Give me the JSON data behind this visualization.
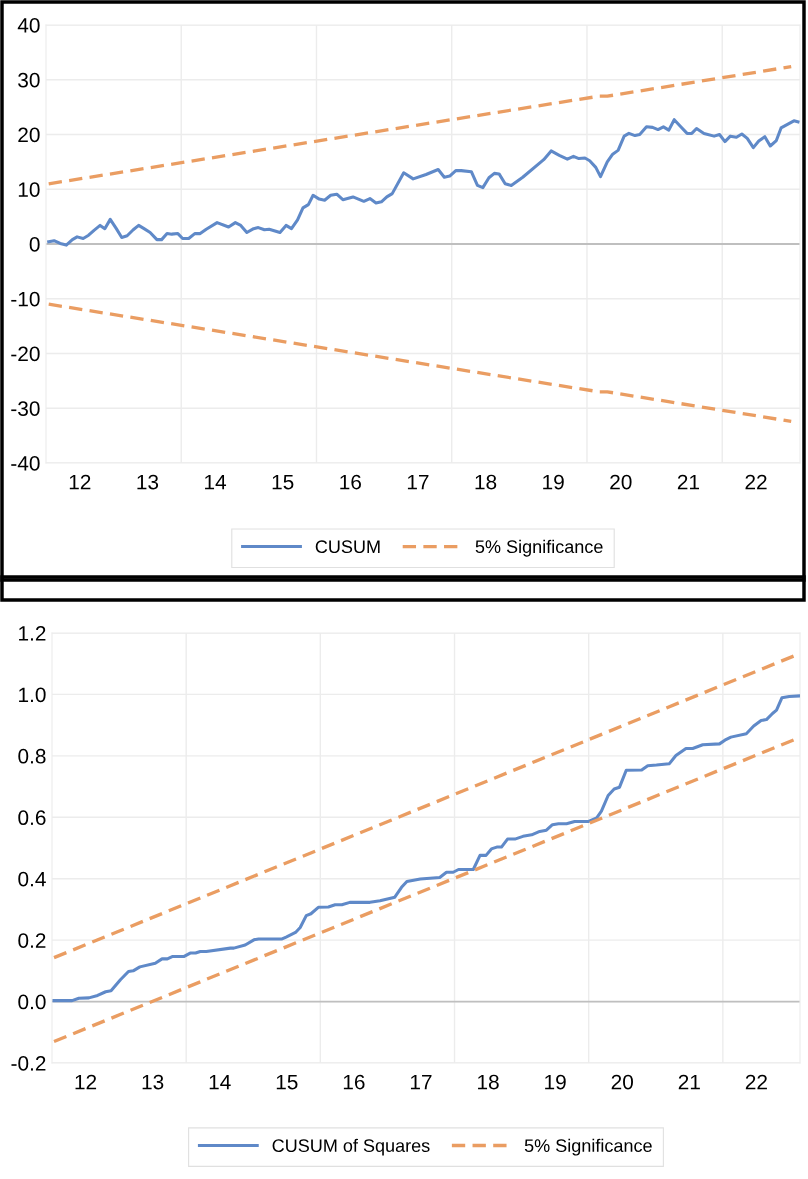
{
  "chart_data": [
    {
      "type": "line",
      "xlim": [
        12,
        23.15
      ],
      "ylim": [
        -40,
        40
      ],
      "yticks": [
        -40,
        -30,
        -20,
        -10,
        0,
        10,
        20,
        30,
        40
      ],
      "xticks": [
        {
          "value": 12.5,
          "label": "12"
        },
        {
          "value": 13.5,
          "label": "13"
        },
        {
          "value": 14.5,
          "label": "14"
        },
        {
          "value": 15.5,
          "label": "15"
        },
        {
          "value": 16.5,
          "label": "16"
        },
        {
          "value": 17.5,
          "label": "17"
        },
        {
          "value": 18.5,
          "label": "18"
        },
        {
          "value": 19.5,
          "label": "19"
        },
        {
          "value": 20.5,
          "label": "20"
        },
        {
          "value": 21.5,
          "label": "21"
        },
        {
          "value": 22.5,
          "label": "22"
        },
        {
          "value": 14,
          "label": null
        },
        {
          "value": 16,
          "label": null
        },
        {
          "value": 18,
          "label": null
        },
        {
          "value": 20,
          "label": null
        },
        {
          "value": 22,
          "label": null
        }
      ],
      "grid": true,
      "legend": "bottom",
      "ref_lines": [
        {
          "axis": "y",
          "value": 0,
          "color": "#bfbfbf"
        }
      ],
      "series": [
        {
          "name": "CUSUM",
          "color": "#5f89c8",
          "line_style": "solid",
          "x": [
            12.04,
            12.12,
            12.21,
            12.3,
            12.39,
            12.46,
            12.55,
            12.63,
            12.71,
            12.8,
            12.87,
            12.95,
            13.04,
            13.12,
            13.2,
            13.29,
            13.37,
            13.45,
            13.54,
            13.64,
            13.71,
            13.79,
            13.86,
            13.95,
            14.02,
            14.11,
            14.2,
            14.28,
            14.37,
            14.53,
            14.7,
            14.8,
            14.88,
            14.97,
            15.07,
            15.14,
            15.23,
            15.3,
            15.46,
            15.55,
            15.63,
            15.72,
            15.8,
            15.88,
            15.95,
            16.04,
            16.12,
            16.21,
            16.3,
            16.39,
            16.54,
            16.7,
            16.79,
            16.88,
            16.96,
            17.04,
            17.12,
            17.29,
            17.43,
            17.62,
            17.8,
            17.89,
            17.97,
            18.06,
            18.14,
            18.29,
            18.38,
            18.46,
            18.55,
            18.63,
            18.7,
            18.79,
            18.88,
            19.05,
            19.36,
            19.47,
            19.59,
            19.71,
            19.8,
            19.88,
            19.97,
            20.04,
            20.13,
            20.2,
            20.3,
            20.38,
            20.46,
            20.55,
            20.62,
            20.71,
            20.78,
            20.88,
            20.97,
            21.05,
            21.13,
            21.21,
            21.29,
            21.38,
            21.48,
            21.55,
            21.62,
            21.73,
            21.88,
            21.96,
            22.04,
            22.12,
            22.21,
            22.29,
            22.37,
            22.46,
            22.54,
            22.63,
            22.71,
            22.8,
            22.87,
            23.06,
            23.12
          ],
          "values": [
            0.4,
            0.6,
            0.1,
            -0.2,
            0.8,
            1.3,
            1.0,
            1.6,
            2.5,
            3.4,
            2.8,
            4.5,
            2.8,
            1.2,
            1.5,
            2.6,
            3.4,
            2.8,
            2.1,
            0.8,
            0.8,
            1.9,
            1.8,
            1.9,
            1.0,
            1.0,
            1.9,
            1.9,
            2.7,
            3.9,
            3.1,
            3.9,
            3.4,
            2.1,
            2.8,
            3.0,
            2.6,
            2.7,
            2.1,
            3.4,
            2.8,
            4.4,
            6.6,
            7.2,
            8.9,
            8.2,
            8.0,
            8.9,
            9.1,
            8.1,
            8.6,
            7.8,
            8.3,
            7.5,
            7.7,
            8.6,
            9.2,
            13.0,
            11.9,
            12.7,
            13.6,
            12.2,
            12.4,
            13.4,
            13.4,
            13.2,
            10.7,
            10.3,
            12.1,
            12.9,
            12.8,
            11.0,
            10.7,
            12.2,
            15.4,
            17.0,
            16.2,
            15.5,
            16.0,
            15.6,
            15.7,
            15.2,
            14.0,
            12.3,
            15.0,
            16.4,
            17.1,
            19.7,
            20.2,
            19.8,
            20.0,
            21.4,
            21.3,
            20.9,
            21.4,
            20.8,
            22.7,
            21.5,
            20.2,
            20.2,
            21.1,
            20.2,
            19.7,
            20.0,
            18.7,
            19.7,
            19.5,
            20.1,
            19.3,
            17.6,
            18.8,
            19.6,
            17.9,
            18.9,
            21.2,
            22.5,
            22.3
          ]
        },
        {
          "name": "5% Significance",
          "color": "#ea9d62",
          "line_style": "dashed",
          "x": [
            12.04,
            20.18,
            20.3,
            23.02
          ],
          "values": [
            11,
            27,
            27,
            32.4
          ]
        },
        {
          "color": "#ea9d62",
          "line_style": "dashed",
          "x": [
            12.04,
            20.18,
            20.3,
            23.02
          ],
          "values": [
            -11,
            -27,
            -27,
            -32.4
          ]
        }
      ]
    },
    {
      "type": "line",
      "xlim": [
        12,
        23.15
      ],
      "ylim": [
        -0.2,
        1.2
      ],
      "yticks": [
        {
          "value": -0.2,
          "label": "-0.2"
        },
        {
          "value": 0,
          "label": "0.0"
        },
        {
          "value": 0.2,
          "label": "0.2"
        },
        {
          "value": 0.4,
          "label": "0.4"
        },
        {
          "value": 0.6,
          "label": "0.6"
        },
        {
          "value": 0.8,
          "label": "0.8"
        },
        {
          "value": 1.0,
          "label": "1.0"
        },
        {
          "value": 1.2,
          "label": "1.2"
        }
      ],
      "xticks": [
        {
          "value": 12.5,
          "label": "12"
        },
        {
          "value": 13.5,
          "label": "13"
        },
        {
          "value": 14.5,
          "label": "14"
        },
        {
          "value": 15.5,
          "label": "15"
        },
        {
          "value": 16.5,
          "label": "16"
        },
        {
          "value": 17.5,
          "label": "17"
        },
        {
          "value": 18.5,
          "label": "18"
        },
        {
          "value": 19.5,
          "label": "19"
        },
        {
          "value": 20.5,
          "label": "20"
        },
        {
          "value": 21.5,
          "label": "21"
        },
        {
          "value": 22.5,
          "label": "22"
        },
        {
          "value": 14,
          "label": null
        },
        {
          "value": 16,
          "label": null
        },
        {
          "value": 18,
          "label": null
        },
        {
          "value": 20,
          "label": null
        },
        {
          "value": 22,
          "label": null
        }
      ],
      "grid": true,
      "legend": "bottom",
      "ref_lines": [
        {
          "axis": "y",
          "value": 0,
          "color": "#bfbfbf"
        }
      ],
      "series": [
        {
          "name": "CUSUM of Squares",
          "color": "#5f89c8",
          "line_style": "solid",
          "x": [
            12.03,
            12.3,
            12.4,
            12.55,
            12.68,
            12.8,
            12.88,
            13.02,
            13.14,
            13.21,
            13.31,
            13.54,
            13.64,
            13.72,
            13.8,
            13.97,
            14.06,
            14.14,
            14.21,
            14.3,
            14.66,
            14.71,
            14.88,
            15.01,
            15.08,
            15.43,
            15.49,
            15.63,
            15.7,
            15.79,
            15.86,
            15.97,
            16.12,
            16.22,
            16.32,
            16.44,
            16.74,
            16.89,
            17.11,
            17.21,
            17.29,
            17.49,
            17.78,
            17.88,
            17.98,
            18.06,
            18.28,
            18.38,
            18.47,
            18.55,
            18.63,
            18.7,
            18.79,
            18.9,
            19.02,
            19.15,
            19.27,
            19.37,
            19.46,
            19.55,
            19.67,
            19.79,
            19.99,
            20.12,
            20.19,
            20.29,
            20.38,
            20.46,
            20.56,
            20.79,
            20.88,
            21.01,
            21.2,
            21.3,
            21.45,
            21.55,
            21.7,
            21.95,
            22.03,
            22.12,
            22.35,
            22.46,
            22.57,
            22.65,
            22.74,
            22.8,
            22.88,
            22.99,
            23.13
          ],
          "values": [
            0.003,
            0.003,
            0.011,
            0.012,
            0.02,
            0.032,
            0.035,
            0.071,
            0.098,
            0.1,
            0.113,
            0.125,
            0.139,
            0.139,
            0.147,
            0.147,
            0.158,
            0.158,
            0.163,
            0.163,
            0.174,
            0.174,
            0.184,
            0.201,
            0.204,
            0.204,
            0.21,
            0.225,
            0.241,
            0.28,
            0.286,
            0.307,
            0.308,
            0.315,
            0.315,
            0.323,
            0.323,
            0.328,
            0.34,
            0.372,
            0.391,
            0.399,
            0.404,
            0.421,
            0.421,
            0.43,
            0.43,
            0.476,
            0.476,
            0.497,
            0.503,
            0.503,
            0.529,
            0.529,
            0.538,
            0.543,
            0.554,
            0.558,
            0.576,
            0.579,
            0.579,
            0.586,
            0.586,
            0.598,
            0.62,
            0.671,
            0.692,
            0.698,
            0.753,
            0.754,
            0.768,
            0.77,
            0.774,
            0.801,
            0.824,
            0.824,
            0.836,
            0.839,
            0.851,
            0.861,
            0.872,
            0.897,
            0.915,
            0.918,
            0.938,
            0.949,
            0.989,
            0.993,
            0.995
          ]
        },
        {
          "name": "5% Significance",
          "color": "#ea9d62",
          "line_style": "dashed",
          "x": [
            12.03,
            23.09
          ],
          "values": [
            0.143,
            1.128
          ]
        },
        {
          "color": "#ea9d62",
          "line_style": "dashed",
          "x": [
            12.03,
            23.09
          ],
          "values": [
            -0.13,
            0.855
          ]
        }
      ]
    }
  ]
}
